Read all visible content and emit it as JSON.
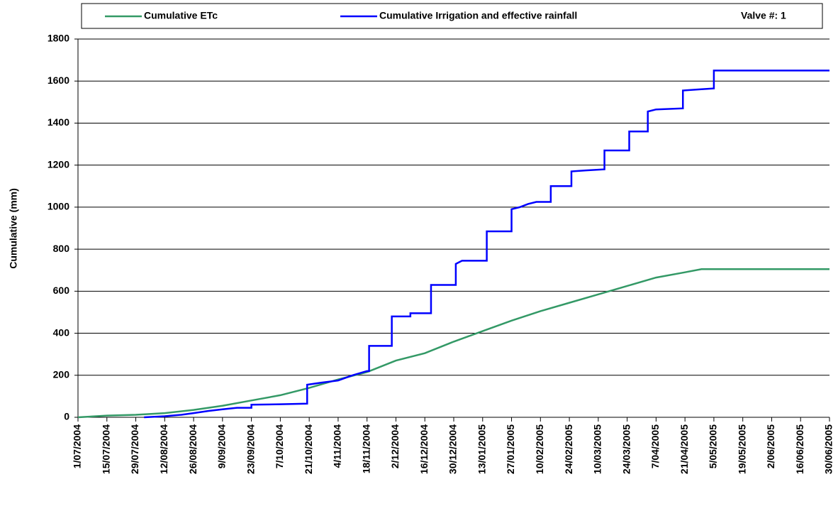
{
  "chart_data": {
    "type": "line",
    "ylabel": "Cumulative (mm)",
    "annotation": "Valve #: 1",
    "xlim": [
      "1/07/2004",
      "30/06/2005"
    ],
    "xticks": [
      "1/07/2004",
      "15/07/2004",
      "29/07/2004",
      "12/08/2004",
      "26/08/2004",
      "9/09/2004",
      "23/09/2004",
      "7/10/2004",
      "21/10/2004",
      "4/11/2004",
      "18/11/2004",
      "2/12/2004",
      "16/12/2004",
      "30/12/2004",
      "13/01/2005",
      "27/01/2005",
      "10/02/2005",
      "24/02/2005",
      "10/03/2005",
      "24/03/2005",
      "7/04/2005",
      "21/04/2005",
      "5/05/2005",
      "19/05/2005",
      "2/06/2005",
      "16/06/2005",
      "30/06/2005"
    ],
    "ylim": [
      0,
      1800
    ],
    "yticks": [
      0,
      200,
      400,
      600,
      800,
      1000,
      1200,
      1400,
      1600,
      1800
    ],
    "grid": true,
    "series": [
      {
        "name": "Cumulative ETc",
        "color": "#339966",
        "x": [
          "1/07/2004",
          "15/07/2004",
          "29/07/2004",
          "12/08/2004",
          "26/08/2004",
          "9/09/2004",
          "23/09/2004",
          "7/10/2004",
          "21/10/2004",
          "4/11/2004",
          "18/11/2004",
          "2/12/2004",
          "16/12/2004",
          "30/12/2004",
          "13/01/2005",
          "27/01/2005",
          "10/02/2005",
          "24/02/2005",
          "10/03/2005",
          "24/03/2005",
          "7/04/2005",
          "21/04/2005",
          "29/04/2005",
          "30/06/2005"
        ],
        "values": [
          0,
          8,
          12,
          20,
          35,
          55,
          80,
          105,
          140,
          180,
          215,
          270,
          305,
          360,
          410,
          460,
          505,
          545,
          585,
          625,
          665,
          690,
          705,
          705
        ]
      },
      {
        "name": "Cumulative Irrigation and effective rainfall",
        "color": "#0000ff",
        "x": [
          "2/08/2004",
          "12/08/2004",
          "20/08/2004",
          "26/08/2004",
          "2/09/2004",
          "9/09/2004",
          "16/09/2004",
          "23/09/2004",
          "23/09/2004",
          "7/10/2004",
          "20/10/2004",
          "20/10/2004",
          "27/10/2004",
          "4/11/2004",
          "11/11/2004",
          "18/11/2004",
          "19/11/2004",
          "19/11/2004",
          "30/11/2004",
          "30/11/2004",
          "9/12/2004",
          "9/12/2004",
          "19/12/2004",
          "19/12/2004",
          "31/12/2004",
          "31/12/2004",
          "3/01/2005",
          "15/01/2005",
          "15/01/2005",
          "27/01/2005",
          "27/01/2005",
          "31/01/2005",
          "4/02/2005",
          "8/02/2005",
          "15/02/2005",
          "15/02/2005",
          "25/02/2005",
          "25/02/2005",
          "4/03/2005",
          "13/03/2005",
          "13/03/2005",
          "25/03/2005",
          "25/03/2005",
          "3/04/2005",
          "3/04/2005",
          "7/04/2005",
          "20/04/2005",
          "20/04/2005",
          "27/04/2005",
          "5/05/2005",
          "5/05/2005",
          "30/06/2005"
        ],
        "values": [
          0,
          5,
          12,
          20,
          30,
          38,
          45,
          45,
          60,
          62,
          65,
          155,
          165,
          175,
          200,
          220,
          220,
          340,
          340,
          480,
          480,
          495,
          495,
          630,
          630,
          730,
          745,
          745,
          885,
          885,
          990,
          1000,
          1015,
          1025,
          1025,
          1100,
          1100,
          1170,
          1175,
          1180,
          1270,
          1270,
          1360,
          1360,
          1455,
          1465,
          1470,
          1555,
          1560,
          1565,
          1650,
          1650
        ]
      }
    ]
  }
}
